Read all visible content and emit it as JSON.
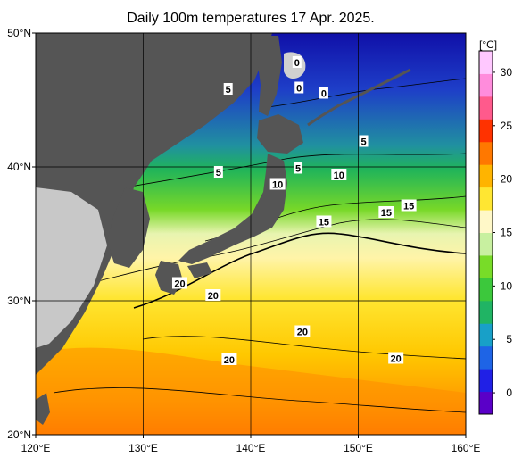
{
  "title": "Daily 100m temperatures 17 Apr. 2025.",
  "map": {
    "lon_range": [
      120,
      160
    ],
    "lat_range": [
      20,
      50
    ],
    "lon_ticks": [
      {
        "value": 120,
        "label": "120°E"
      },
      {
        "value": 130,
        "label": "130°E"
      },
      {
        "value": 140,
        "label": "140°E"
      },
      {
        "value": 150,
        "label": "150°E"
      },
      {
        "value": 160,
        "label": "160°E"
      }
    ],
    "lat_ticks": [
      {
        "value": 50,
        "label": "50°N"
      },
      {
        "value": 40,
        "label": "40°N"
      },
      {
        "value": 30,
        "label": "30°N"
      },
      {
        "value": 20,
        "label": "20°N"
      }
    ],
    "grid": true,
    "contour_labels": [
      {
        "text": "0",
        "lon": 144.3,
        "lat": 47.8
      },
      {
        "text": "0",
        "lon": 144.5,
        "lat": 45.9
      },
      {
        "text": "0",
        "lon": 146.8,
        "lat": 45.5
      },
      {
        "text": "5",
        "lon": 137.9,
        "lat": 45.8
      },
      {
        "text": "5",
        "lon": 150.5,
        "lat": 41.9
      },
      {
        "text": "5",
        "lon": 144.4,
        "lat": 39.9
      },
      {
        "text": "5",
        "lon": 137.0,
        "lat": 39.6
      },
      {
        "text": "10",
        "lon": 142.5,
        "lat": 38.7
      },
      {
        "text": "10",
        "lon": 148.2,
        "lat": 39.4
      },
      {
        "text": "15",
        "lon": 154.7,
        "lat": 37.1
      },
      {
        "text": "15",
        "lon": 152.6,
        "lat": 36.6
      },
      {
        "text": "15",
        "lon": 146.8,
        "lat": 35.9
      },
      {
        "text": "20",
        "lon": 133.4,
        "lat": 31.3
      },
      {
        "text": "20",
        "lon": 136.5,
        "lat": 30.4
      },
      {
        "text": "20",
        "lon": 144.8,
        "lat": 27.7
      },
      {
        "text": "20",
        "lon": 138.0,
        "lat": 25.6
      },
      {
        "text": "20",
        "lon": 153.5,
        "lat": 25.7
      }
    ]
  },
  "colorbar": {
    "unit": "[°C]",
    "range": [
      -2,
      32
    ],
    "ticks": [
      0,
      5,
      10,
      15,
      20,
      25,
      30
    ],
    "colors": [
      "#5a00c8",
      "#2020e6",
      "#1e64e6",
      "#18a0c8",
      "#20b464",
      "#3cc83c",
      "#78dc28",
      "#c8f0a0",
      "#fff8c8",
      "#ffe632",
      "#ffb400",
      "#ff7800",
      "#ff3200",
      "#ff5a8c",
      "#ff8cdc",
      "#ffc8ff"
    ]
  }
}
